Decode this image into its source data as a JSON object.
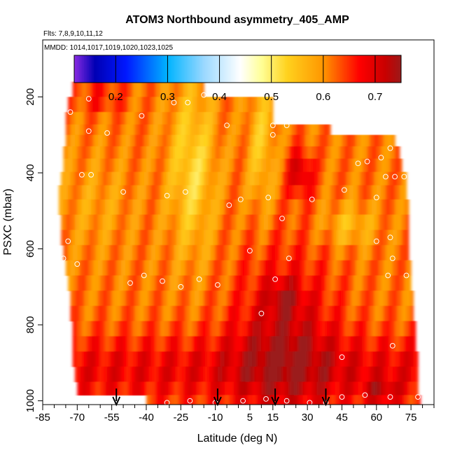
{
  "chart_data": {
    "type": "heatmap",
    "title": "ATOM3 Northbound asymmetry_405_AMP",
    "subtitle_flights": "Flts: 7,8,9,10,11,12",
    "subtitle_dates": "MMDD: 1014,1017,1019,1020,1023,1025",
    "xlabel": "Latitude (deg N)",
    "ylabel": "PSXC (mbar)",
    "xlim": [
      -85,
      85
    ],
    "ylim": [
      1010,
      50
    ],
    "y_reversed": true,
    "x_ticks": [
      -85,
      -70,
      -55,
      -40,
      -25,
      -10,
      5,
      15,
      30,
      45,
      60,
      75
    ],
    "x_minor_ticks": [
      -80,
      -75,
      -65,
      -60,
      -50,
      -45,
      -35,
      -30,
      -20,
      -15,
      -5,
      0,
      10,
      20,
      25,
      35,
      40,
      50,
      55,
      65,
      70,
      80,
      85
    ],
    "y_ticks": [
      200,
      400,
      600,
      800,
      1000
    ],
    "colorbar": {
      "range": [
        0.12,
        0.75
      ],
      "ticks": [
        0.2,
        0.3,
        0.4,
        0.5,
        0.6,
        0.7
      ],
      "stops": [
        {
          "v": 0.12,
          "c": "#8a2be2"
        },
        {
          "v": 0.16,
          "c": "#0000b4"
        },
        {
          "v": 0.22,
          "c": "#0018ff"
        },
        {
          "v": 0.3,
          "c": "#00b4ff"
        },
        {
          "v": 0.37,
          "c": "#9ad8ff"
        },
        {
          "v": 0.44,
          "c": "#ffffff"
        },
        {
          "v": 0.48,
          "c": "#ffff99"
        },
        {
          "v": 0.53,
          "c": "#ffd21e"
        },
        {
          "v": 0.6,
          "c": "#ff9600"
        },
        {
          "v": 0.67,
          "c": "#ff0000"
        },
        {
          "v": 0.72,
          "c": "#c80000"
        },
        {
          "v": 0.75,
          "c": "#9b1a1a"
        }
      ]
    },
    "rows": [
      {
        "p": 180,
        "x0": -72,
        "x1": -15
      },
      {
        "p": 220,
        "x0": -74,
        "x1": 15
      },
      {
        "p": 260,
        "x0": -75,
        "x1": 15
      },
      {
        "p": 285,
        "x0": -75,
        "x1": 40
      },
      {
        "p": 315,
        "x0": -75,
        "x1": 68
      },
      {
        "p": 345,
        "x0": -76,
        "x1": 70
      },
      {
        "p": 380,
        "x0": -76,
        "x1": 71
      },
      {
        "p": 415,
        "x0": -77,
        "x1": 73
      },
      {
        "p": 450,
        "x0": -78,
        "x1": 73
      },
      {
        "p": 490,
        "x0": -78,
        "x1": 74
      },
      {
        "p": 530,
        "x0": -77,
        "x1": 74
      },
      {
        "p": 570,
        "x0": -77,
        "x1": 74
      },
      {
        "p": 610,
        "x0": -76,
        "x1": 74
      },
      {
        "p": 650,
        "x0": -75,
        "x1": 75
      },
      {
        "p": 690,
        "x0": -74,
        "x1": 75
      },
      {
        "p": 730,
        "x0": -73,
        "x1": 76
      },
      {
        "p": 770,
        "x0": -73,
        "x1": 76
      },
      {
        "p": 810,
        "x0": -72,
        "x1": 77
      },
      {
        "p": 850,
        "x0": -72,
        "x1": 77
      },
      {
        "p": 890,
        "x0": -72,
        "x1": 78
      },
      {
        "p": 930,
        "x0": -71,
        "x1": 78
      },
      {
        "p": 970,
        "x0": -70,
        "x1": 78
      },
      {
        "p": 1000,
        "x0": -40,
        "x1": 79
      }
    ],
    "sample_points": [
      {
        "lat": -65,
        "p": 205
      },
      {
        "lat": -28,
        "p": 215
      },
      {
        "lat": -22,
        "p": 215
      },
      {
        "lat": -15,
        "p": 195
      },
      {
        "lat": -73,
        "p": 240
      },
      {
        "lat": -42,
        "p": 250
      },
      {
        "lat": -65,
        "p": 290
      },
      {
        "lat": -57,
        "p": 295
      },
      {
        "lat": -5,
        "p": 275
      },
      {
        "lat": 15,
        "p": 275
      },
      {
        "lat": 21,
        "p": 275
      },
      {
        "lat": 15,
        "p": 300
      },
      {
        "lat": -68,
        "p": 405
      },
      {
        "lat": -64,
        "p": 405
      },
      {
        "lat": 52,
        "p": 375
      },
      {
        "lat": 56,
        "p": 370
      },
      {
        "lat": 62,
        "p": 360
      },
      {
        "lat": 66,
        "p": 335
      },
      {
        "lat": 68,
        "p": 410
      },
      {
        "lat": 72,
        "p": 410
      },
      {
        "lat": 64,
        "p": 410
      },
      {
        "lat": -50,
        "p": 450
      },
      {
        "lat": -31,
        "p": 460
      },
      {
        "lat": -23,
        "p": 450
      },
      {
        "lat": -4,
        "p": 485
      },
      {
        "lat": 1,
        "p": 470
      },
      {
        "lat": 13,
        "p": 465
      },
      {
        "lat": 32,
        "p": 470
      },
      {
        "lat": 46,
        "p": 445
      },
      {
        "lat": 60,
        "p": 465
      },
      {
        "lat": 19,
        "p": 520
      },
      {
        "lat": 66,
        "p": 570
      },
      {
        "lat": 60,
        "p": 580
      },
      {
        "lat": -74,
        "p": 580
      },
      {
        "lat": -76,
        "p": 625
      },
      {
        "lat": 5,
        "p": 605
      },
      {
        "lat": 22,
        "p": 625
      },
      {
        "lat": 67,
        "p": 625
      },
      {
        "lat": -70,
        "p": 640
      },
      {
        "lat": -41,
        "p": 670
      },
      {
        "lat": -47,
        "p": 690
      },
      {
        "lat": -33,
        "p": 685
      },
      {
        "lat": -17,
        "p": 680
      },
      {
        "lat": -9,
        "p": 695
      },
      {
        "lat": -25,
        "p": 700
      },
      {
        "lat": 16,
        "p": 680
      },
      {
        "lat": 65,
        "p": 670
      },
      {
        "lat": 73,
        "p": 670
      },
      {
        "lat": 10,
        "p": 770
      },
      {
        "lat": 45,
        "p": 885
      },
      {
        "lat": 67,
        "p": 855
      },
      {
        "lat": -72,
        "p": 960
      },
      {
        "lat": 45,
        "p": 990
      },
      {
        "lat": 55,
        "p": 985
      },
      {
        "lat": 66,
        "p": 990
      },
      {
        "lat": 78,
        "p": 990
      },
      {
        "lat": -45,
        "p": 1000
      },
      {
        "lat": -31,
        "p": 1005
      },
      {
        "lat": -21,
        "p": 1000
      },
      {
        "lat": -10,
        "p": 1005
      },
      {
        "lat": 2,
        "p": 1000
      },
      {
        "lat": 12,
        "p": 995
      },
      {
        "lat": 21,
        "p": 1000
      },
      {
        "lat": 31,
        "p": 1005
      },
      {
        "lat": 38,
        "p": 1005
      }
    ],
    "flight_arrows_lat": [
      -53,
      -9,
      16,
      38
    ]
  }
}
